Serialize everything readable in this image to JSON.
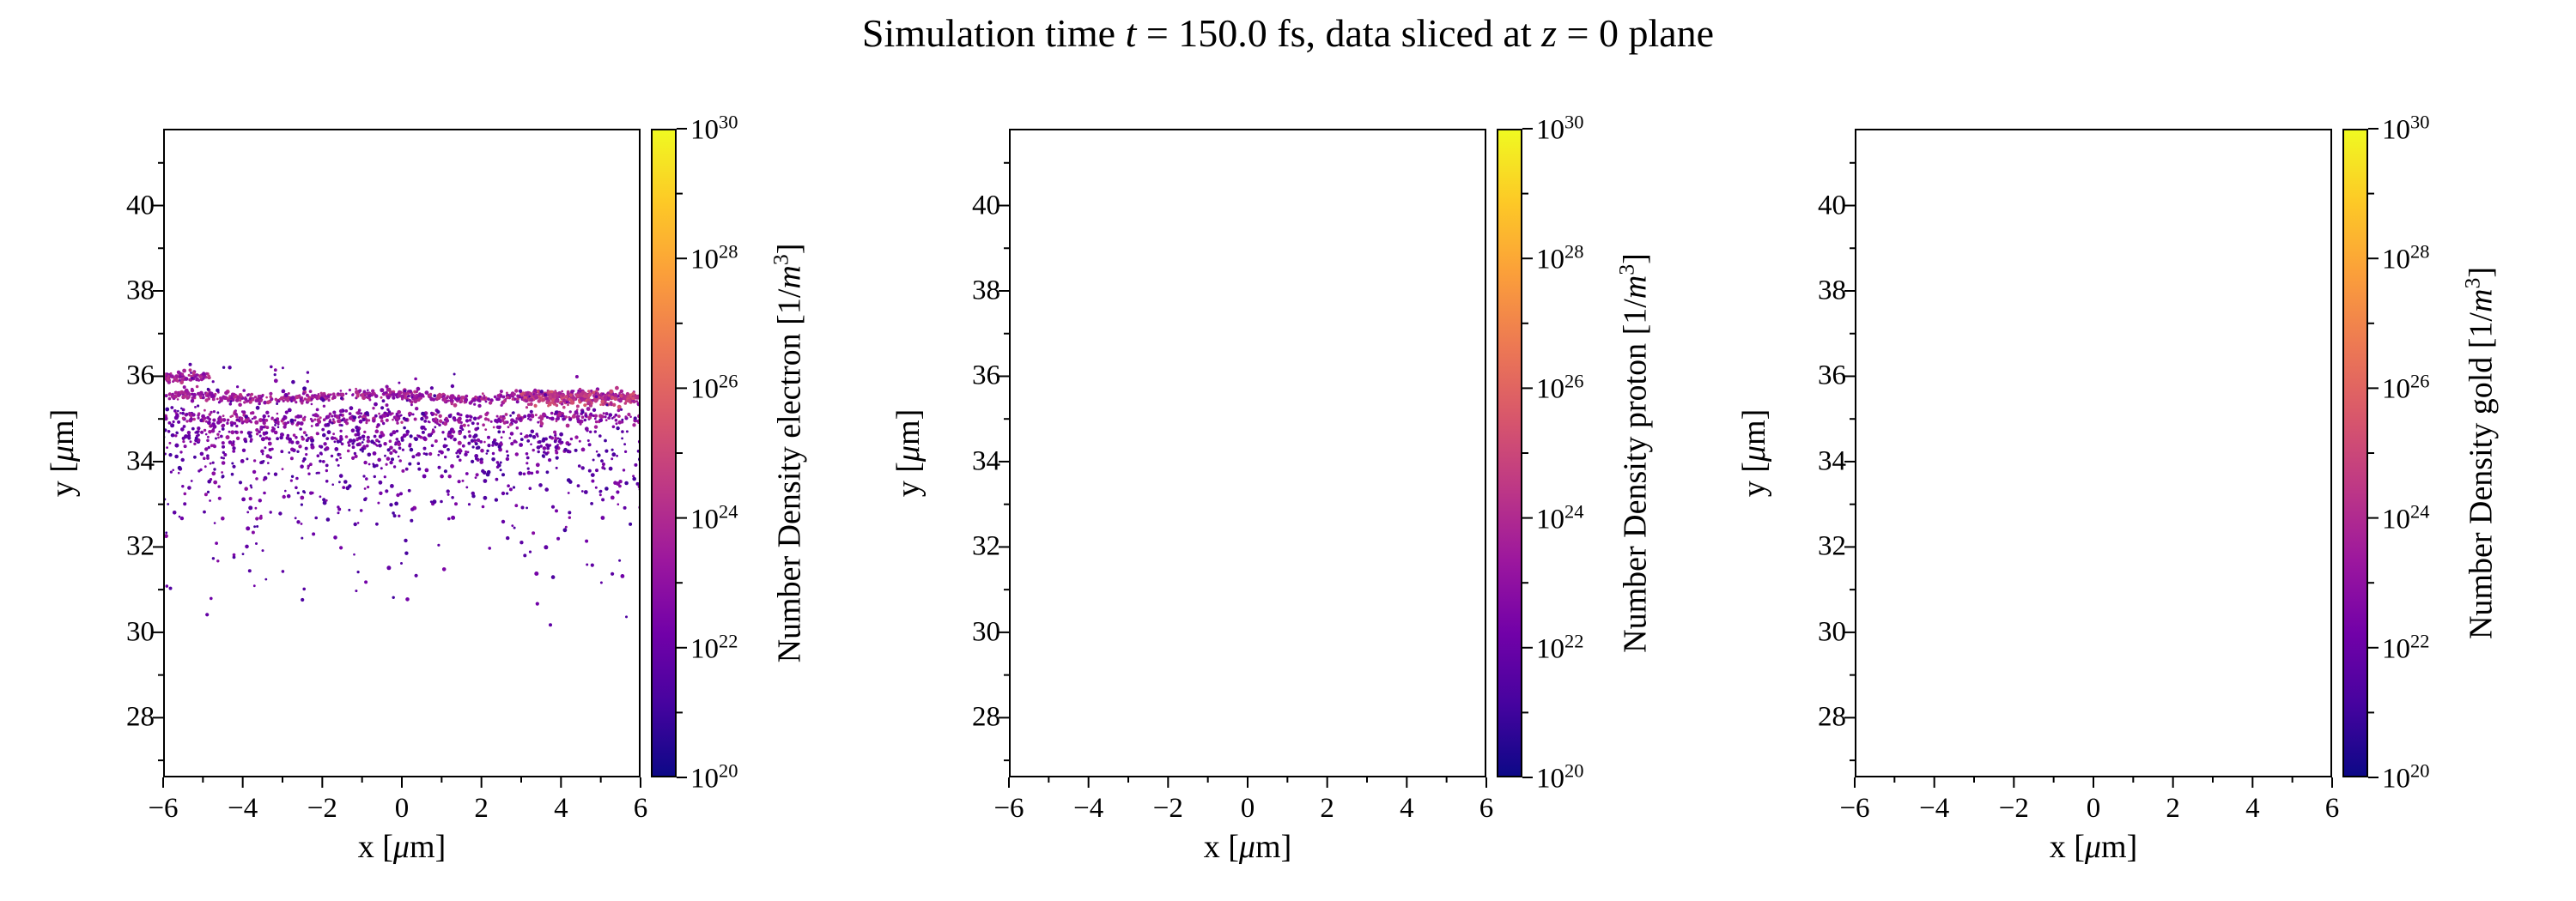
{
  "title": {
    "parts": [
      "Simulation time ",
      "t",
      " = 150.0 fs, data sliced at ",
      "z",
      " = 0 plane"
    ]
  },
  "chart_data": {
    "type": "scatter",
    "title": "Simulation time t = 150.0 fs, data sliced at z = 0 plane",
    "xlim": [
      -6,
      6
    ],
    "ylim": [
      26.6,
      41.8
    ],
    "x_ticks": [
      -6,
      -4,
      -2,
      0,
      2,
      4,
      6
    ],
    "x_tick_labels": [
      "−6",
      "−4",
      "−2",
      "0",
      "2",
      "4",
      "6"
    ],
    "x_minor_ticks": [
      -5,
      -3,
      -1,
      1,
      3,
      5
    ],
    "y_ticks": [
      28,
      30,
      32,
      34,
      36,
      38,
      40
    ],
    "y_tick_labels": [
      "28",
      "30",
      "32",
      "34",
      "36",
      "38",
      "40"
    ],
    "y_minor_ticks": [
      27,
      29,
      31,
      33,
      35,
      37,
      39,
      41
    ],
    "xlabel_parts": [
      "x [",
      "μ",
      "m]"
    ],
    "ylabel_parts": [
      "y [",
      "μ",
      "m]"
    ],
    "grid": false,
    "colorbar": {
      "scale": "log",
      "min_exp": 20,
      "max_exp": 30,
      "tick_exps": [
        20,
        22,
        24,
        26,
        28,
        30
      ],
      "minor_exps": [
        21,
        23,
        25,
        27,
        29
      ],
      "colormap": "plasma",
      "colors": [
        "#0d0887",
        "#46039f",
        "#7201a8",
        "#9c179e",
        "#bd3786",
        "#d8576b",
        "#ed7953",
        "#fb9f3a",
        "#fdc926",
        "#f0f921"
      ]
    },
    "panels": [
      {
        "species": "electron",
        "colorbar_label_parts": [
          "Number Density electron [1/",
          "m",
          "3",
          "]"
        ],
        "scatter": {
          "seed": 421337,
          "y_clip": [
            29.5,
            36.3
          ],
          "bands": [
            {
              "count": 650,
              "x_min": -6,
              "x_max": 6,
              "y_center": 35.52,
              "y_sigma": 0.06,
              "wave_amp": 0.06,
              "log_density_min": 22.5,
              "log_density_max": 24.5
            },
            {
              "count": 230,
              "x_min": 3,
              "x_max": 6,
              "y_center": 35.5,
              "y_sigma": 0.09,
              "wave_amp": 0.03,
              "log_density_min": 23.5,
              "log_density_max": 25.5
            },
            {
              "count": 80,
              "x_min": -6,
              "x_max": -4.8,
              "y_center": 36.0,
              "y_sigma": 0.07,
              "wave_amp": 0.02,
              "log_density_min": 22.5,
              "log_density_max": 24.5
            },
            {
              "count": 420,
              "x_min": -6,
              "x_max": 6,
              "y_center": 35.0,
              "y_sigma": 0.08,
              "wave_amp": 0.05,
              "log_density_min": 22.0,
              "log_density_max": 24.2
            },
            {
              "count": 220,
              "x_min": -6,
              "x_max": 4.5,
              "y_center": 34.55,
              "y_sigma": 0.13,
              "wave_amp": 0.06,
              "log_density_min": 21.5,
              "log_density_max": 23.5
            },
            {
              "count": 450,
              "x_min": -6,
              "x_max": 1,
              "y_center": 34.3,
              "y_sigma": 0.85,
              "wave_amp": 0,
              "log_density_min": 21.0,
              "log_density_max": 23.0
            },
            {
              "count": 230,
              "x_min": 1,
              "x_max": 6,
              "y_center": 34.1,
              "y_sigma": 0.75,
              "wave_amp": 0,
              "log_density_min": 21.0,
              "log_density_max": 22.8
            },
            {
              "count": 80,
              "x_min": -6,
              "x_max": 6,
              "y_center": 31.9,
              "y_sigma": 0.9,
              "wave_amp": 0,
              "log_density_min": 21.0,
              "log_density_max": 22.5
            }
          ]
        }
      },
      {
        "species": "proton",
        "colorbar_label_parts": [
          "Number Density proton [1/",
          "m",
          "3",
          "]"
        ],
        "scatter": {
          "seed": 1,
          "y_clip": [
            29.5,
            36.3
          ],
          "bands": []
        }
      },
      {
        "species": "gold",
        "colorbar_label_parts": [
          "Number Density gold [1/",
          "m",
          "3",
          "]"
        ],
        "scatter": {
          "seed": 2,
          "y_clip": [
            29.5,
            36.3
          ],
          "bands": []
        }
      }
    ]
  }
}
